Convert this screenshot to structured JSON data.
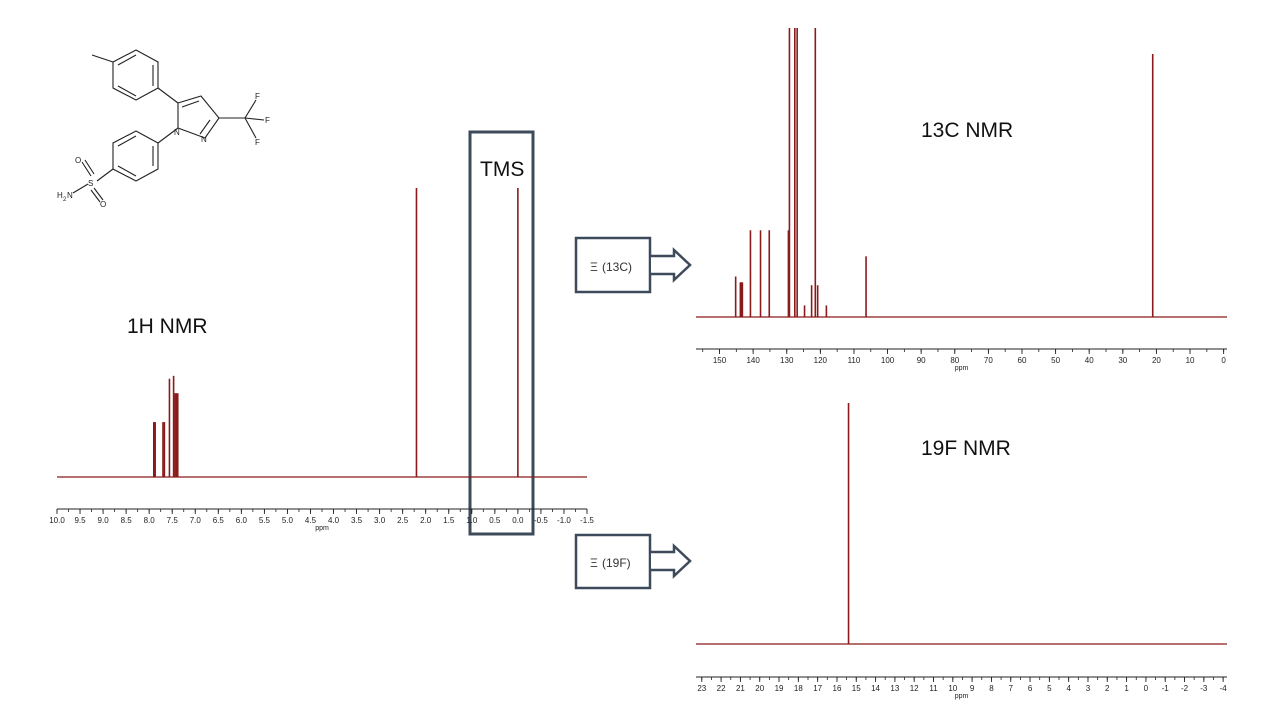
{
  "labels": {
    "h_title": "1H NMR",
    "c_title": "13C NMR",
    "f_title": "19F NMR",
    "tms": "TMS"
  },
  "callouts": [
    {
      "symbol": "Ξ",
      "text": "(13C)"
    },
    {
      "symbol": "Ξ",
      "text": "(19F)"
    }
  ],
  "molecule": {
    "atoms": [
      "F",
      "F",
      "F",
      "N",
      "N",
      "S",
      "O",
      "O",
      "H",
      "N",
      "2"
    ]
  },
  "colors": {
    "spectrum": "#8b1a1a",
    "frame": "#3d4a5a",
    "axis": "#222222"
  },
  "chart_data": [
    {
      "type": "line",
      "name": "1H NMR",
      "title": "1H NMR",
      "xlabel": "ppm",
      "xlim": [
        10.0,
        -1.5
      ],
      "xticks": [
        10.0,
        9.5,
        9.0,
        8.5,
        8.0,
        7.5,
        7.0,
        6.5,
        6.0,
        5.5,
        5.0,
        4.5,
        4.0,
        3.5,
        3.0,
        2.5,
        2.0,
        1.5,
        1.0,
        0.5,
        0.0,
        -0.5,
        -1.0,
        -1.5
      ],
      "xtick_labels": [
        "10.0",
        "9.5",
        "9.0",
        "8.5",
        "8.0",
        "7.5",
        "7.0",
        "6.5",
        "6.0",
        "5.5",
        "5.0",
        "4.5",
        "4.0",
        "3.5",
        "3.0",
        "2.5",
        "2.0",
        "1.5",
        "1.0",
        "0.5",
        "0.0",
        "-0.5",
        "-1.0",
        "-1.5"
      ],
      "ylim": [
        0,
        1
      ],
      "peaks": [
        {
          "x": 7.9,
          "y": 0.19
        },
        {
          "x": 7.87,
          "y": 0.19
        },
        {
          "x": 7.7,
          "y": 0.19
        },
        {
          "x": 7.67,
          "y": 0.19
        },
        {
          "x": 7.56,
          "y": 0.34
        },
        {
          "x": 7.47,
          "y": 0.35
        },
        {
          "x": 7.44,
          "y": 0.29
        },
        {
          "x": 7.41,
          "y": 0.29
        },
        {
          "x": 7.38,
          "y": 0.29
        },
        {
          "x": 2.2,
          "y": 1.0
        },
        {
          "x": 0.0,
          "y": 1.0
        }
      ],
      "annotations": [
        "TMS"
      ]
    },
    {
      "type": "line",
      "name": "13C NMR",
      "title": "13C NMR",
      "xlabel": "ppm",
      "xlim": [
        157,
        -1
      ],
      "xticks": [
        150,
        140,
        130,
        120,
        110,
        100,
        90,
        80,
        70,
        60,
        50,
        40,
        30,
        20,
        10,
        0
      ],
      "xtick_labels": [
        "150",
        "140",
        "130",
        "120",
        "110",
        "100",
        "90",
        "80",
        "70",
        "60",
        "50",
        "40",
        "30",
        "20",
        "10",
        "0"
      ],
      "ylim": [
        0,
        1
      ],
      "peaks": [
        {
          "x": 145.2,
          "y": 0.14
        },
        {
          "x": 143.8,
          "y": 0.12
        },
        {
          "x": 143.5,
          "y": 0.12
        },
        {
          "x": 143.2,
          "y": 0.12
        },
        {
          "x": 140.8,
          "y": 0.3
        },
        {
          "x": 137.8,
          "y": 0.3
        },
        {
          "x": 135.2,
          "y": 0.3
        },
        {
          "x": 129.5,
          "y": 0.3
        },
        {
          "x": 129.2,
          "y": 1.0
        },
        {
          "x": 127.6,
          "y": 1.0
        },
        {
          "x": 126.9,
          "y": 1.0
        },
        {
          "x": 124.7,
          "y": 0.04
        },
        {
          "x": 122.6,
          "y": 0.11
        },
        {
          "x": 121.5,
          "y": 1.0
        },
        {
          "x": 120.8,
          "y": 0.11
        },
        {
          "x": 118.2,
          "y": 0.04
        },
        {
          "x": 106.4,
          "y": 0.21
        },
        {
          "x": 21.1,
          "y": 0.91
        }
      ]
    },
    {
      "type": "line",
      "name": "19F NMR",
      "title": "19F NMR",
      "xlabel": "ppm",
      "xlim": [
        23.3,
        -4.2
      ],
      "xticks": [
        23,
        22,
        21,
        20,
        19,
        18,
        17,
        16,
        15,
        14,
        13,
        12,
        11,
        10,
        9,
        8,
        7,
        6,
        5,
        4,
        3,
        2,
        1,
        0,
        -1,
        -2,
        -3,
        -4
      ],
      "xtick_labels": [
        "23",
        "22",
        "21",
        "20",
        "19",
        "18",
        "17",
        "16",
        "15",
        "14",
        "13",
        "12",
        "11",
        "10",
        "9",
        "8",
        "7",
        "6",
        "5",
        "4",
        "3",
        "2",
        "1",
        "0",
        "-1",
        "-2",
        "-3",
        "-4"
      ],
      "ylim": [
        0,
        1
      ],
      "peaks": [
        {
          "x": 15.4,
          "y": 1.0
        }
      ]
    }
  ]
}
